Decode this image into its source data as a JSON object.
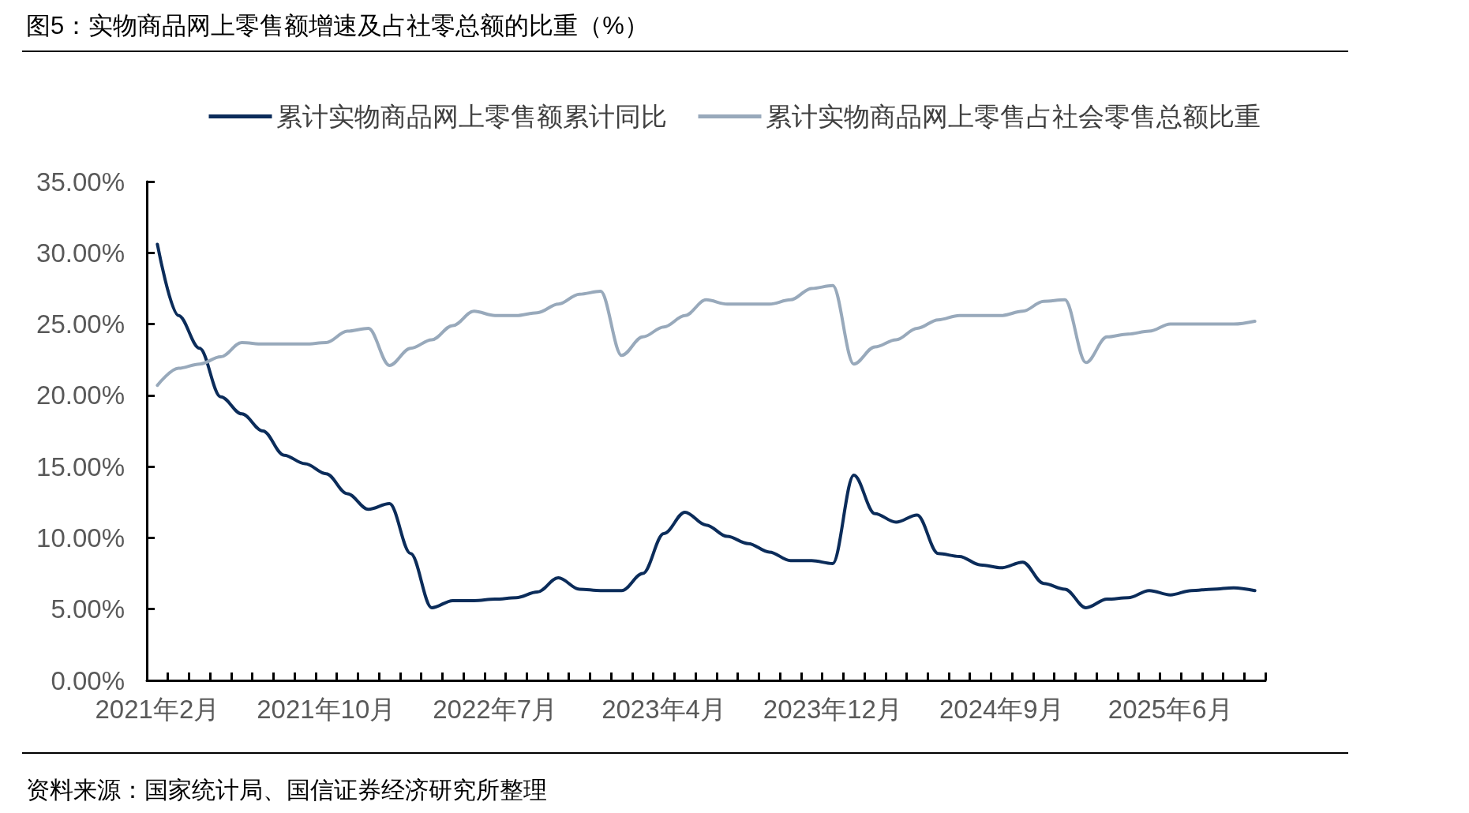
{
  "chart_data": {
    "type": "line",
    "title": "图5：实物商品网上零售额增速及占社零总额的比重（%）",
    "annotations": [
      "资料来源：国家统计局、国信证券经济研究所整理"
    ],
    "categories": [
      "2021年2月",
      null,
      null,
      null,
      null,
      null,
      null,
      null,
      "2021年10月",
      null,
      null,
      null,
      null,
      null,
      null,
      null,
      "2022年7月",
      null,
      null,
      null,
      null,
      null,
      null,
      null,
      "2023年4月",
      null,
      null,
      null,
      null,
      null,
      null,
      null,
      "2023年12月",
      null,
      null,
      null,
      null,
      null,
      null,
      null,
      "2024年9月",
      null,
      null,
      null,
      null,
      null,
      null,
      null,
      "2025年6月",
      null,
      null,
      null,
      null
    ],
    "series": [
      {
        "name": "累计实物商品网上零售额累计同比",
        "color": "#0b2c5a",
        "values": [
          30.6,
          25.6,
          23.3,
          19.9,
          18.7,
          17.5,
          15.8,
          15.2,
          14.5,
          13.1,
          12.0,
          12.4,
          8.9,
          5.1,
          5.6,
          5.6,
          5.7,
          5.8,
          6.2,
          7.2,
          6.4,
          6.3,
          6.3,
          7.5,
          10.3,
          11.8,
          10.9,
          10.1,
          9.6,
          9.0,
          8.4,
          8.4,
          8.2,
          14.4,
          11.7,
          11.1,
          11.6,
          8.9,
          8.7,
          8.1,
          7.9,
          8.3,
          6.8,
          6.4,
          5.1,
          5.7,
          5.8,
          6.3,
          6.0,
          6.3,
          6.4,
          6.5,
          6.3
        ]
      },
      {
        "name": "累计实物商品网上零售占社会零售总额比重",
        "color": "#98a9bb",
        "values": [
          20.7,
          21.9,
          22.2,
          22.7,
          23.7,
          23.6,
          23.6,
          23.6,
          23.7,
          24.5,
          24.7,
          22.1,
          23.3,
          23.9,
          24.9,
          25.9,
          25.6,
          25.6,
          25.8,
          26.4,
          27.1,
          27.3,
          22.8,
          24.1,
          24.8,
          25.6,
          26.7,
          26.4,
          26.4,
          26.4,
          26.7,
          27.5,
          27.7,
          22.2,
          23.4,
          23.9,
          24.7,
          25.3,
          25.6,
          25.6,
          25.6,
          25.9,
          26.6,
          26.7,
          22.3,
          24.1,
          24.3,
          24.5,
          25.0,
          25.0,
          25.0,
          25.0,
          25.2
        ]
      }
    ],
    "ylim": [
      0,
      35
    ],
    "yticks": [
      {
        "value": 0,
        "label": "0.00%"
      },
      {
        "value": 5,
        "label": "5.00%"
      },
      {
        "value": 10,
        "label": "10.00%"
      },
      {
        "value": 15,
        "label": "15.00%"
      },
      {
        "value": 20,
        "label": "20.00%"
      },
      {
        "value": 25,
        "label": "25.00%"
      },
      {
        "value": 30,
        "label": "30.00%"
      },
      {
        "value": 35,
        "label": "35.00%"
      }
    ],
    "grid": false,
    "legend": "top",
    "marker": "none",
    "line_style": "solid"
  }
}
